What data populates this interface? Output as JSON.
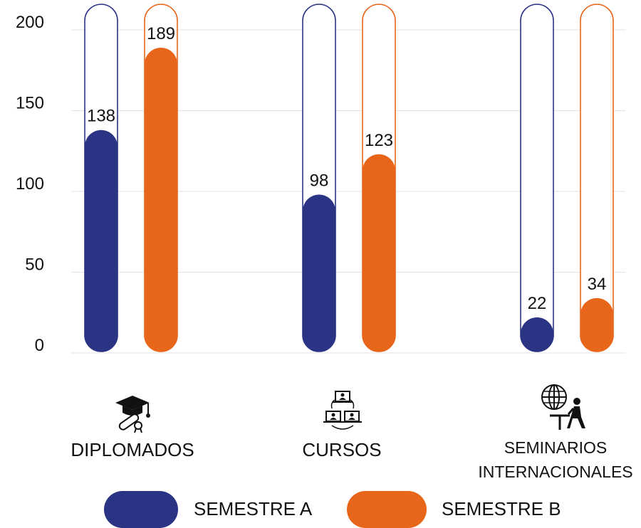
{
  "chart_data": {
    "type": "bar",
    "categories": [
      "DIPLOMADOS",
      "CURSOS",
      "SEMINARIOS INTERNACIONALES"
    ],
    "series": [
      {
        "name": "SEMESTRE A",
        "color": "#2a3384",
        "values": [
          138,
          98,
          22
        ]
      },
      {
        "name": "SEMESTRE B",
        "color": "#e8661a",
        "values": [
          189,
          123,
          34
        ]
      }
    ],
    "yticks": [
      0,
      50,
      100,
      150,
      200
    ],
    "ylim": [
      0,
      200
    ],
    "grid": true,
    "legend_position": "bottom"
  },
  "labels": {
    "cat1": "DIPLOMADOS",
    "cat2": "CURSOS",
    "cat3_line1": "SEMINARIOS",
    "cat3_line2": "INTERNACIONALES"
  },
  "legend": {
    "a": "SEMESTRE A",
    "b": "SEMESTRE B"
  },
  "icons": [
    "graduation-cap-diploma-icon",
    "online-courses-icon",
    "international-seminar-icon"
  ]
}
